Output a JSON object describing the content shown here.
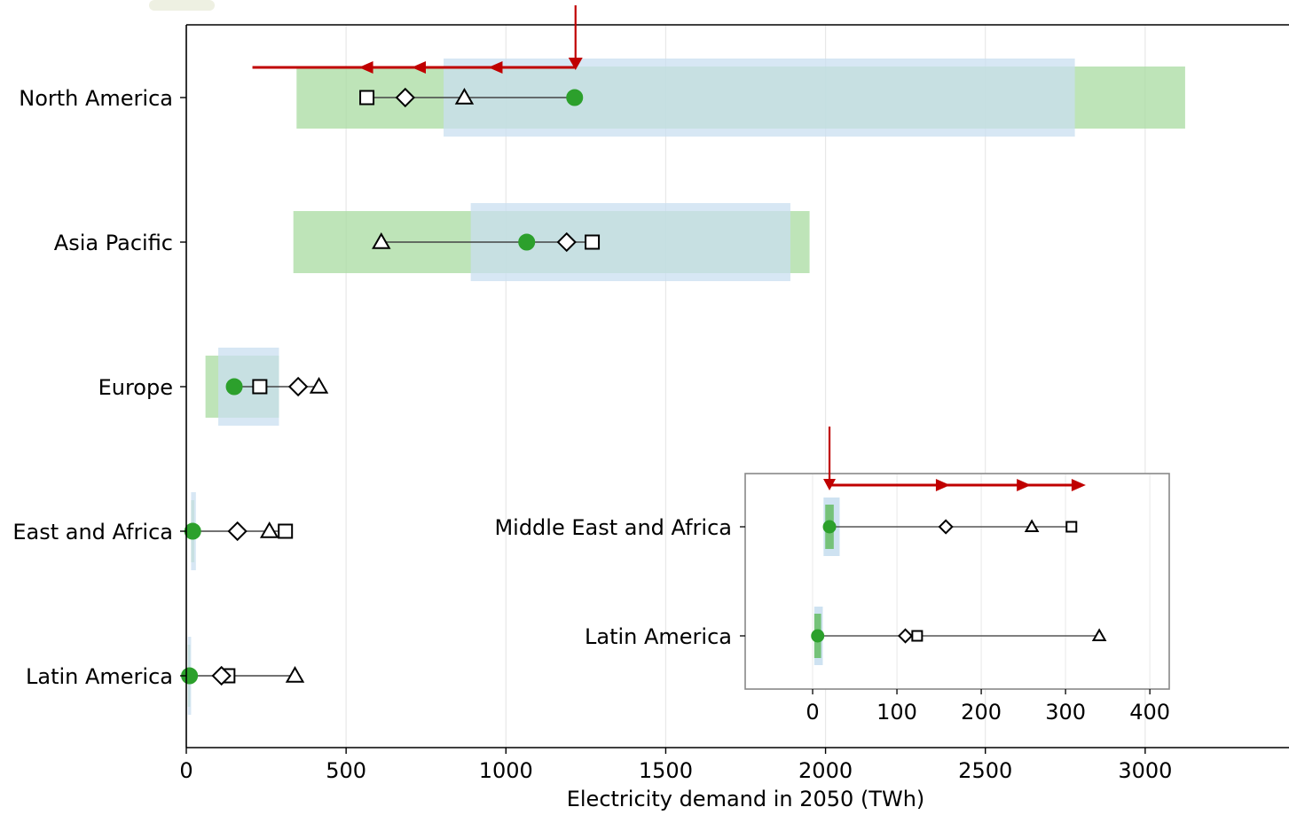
{
  "chart_data": [
    {
      "type": "range-dot",
      "xlabel": "Electricity demand in 2050 (TWh)",
      "ylabel": "",
      "xlim": [
        0,
        3450
      ],
      "xticks": [
        0,
        500,
        1000,
        1500,
        2000,
        2500,
        3000
      ],
      "xtick_labels": [
        "0",
        "500",
        "1000",
        "1500",
        "2000",
        "2500",
        "3000"
      ],
      "grid": "vertical",
      "categories": [
        "North America",
        "Asia Pacific",
        "Europe",
        "East and Africa",
        "Latin America"
      ],
      "ranges": [
        {
          "name": "green-range",
          "color": "#a8dba0",
          "values": [
            [
              345,
              3125
            ],
            [
              335,
              1950
            ],
            [
              60,
              290
            ],
            [
              15,
              25
            ],
            [
              5,
              12
            ]
          ]
        },
        {
          "name": "blue-range",
          "color": "#c9dff0",
          "values": [
            [
              805,
              2780
            ],
            [
              890,
              1890
            ],
            [
              100,
              290
            ],
            [
              15,
              30
            ],
            [
              5,
              15
            ]
          ]
        }
      ],
      "series": [
        {
          "marker": "circle-filled",
          "color": "#2ca02c",
          "values": [
            1215,
            1065,
            150,
            20,
            10
          ]
        },
        {
          "marker": "square",
          "color": "#000000",
          "values": [
            565,
            1270,
            230,
            310,
            130
          ]
        },
        {
          "marker": "diamond",
          "color": "#000000",
          "values": [
            685,
            1190,
            350,
            160,
            110
          ]
        },
        {
          "marker": "triangle",
          "color": "#000000",
          "values": [
            870,
            610,
            415,
            260,
            340
          ]
        }
      ],
      "annotations": [
        {
          "type": "down-arrow",
          "category": "North America",
          "x": 1215,
          "color": "#c00000"
        },
        {
          "type": "left-arrows",
          "category": "North America",
          "from": 1215,
          "heads": [
            945,
            705,
            540
          ],
          "end": 540,
          "color": "#c00000"
        }
      ]
    },
    {
      "type": "range-dot-inset",
      "xlabel": "",
      "xlim": [
        -80,
        423
      ],
      "xticks": [
        0,
        100,
        200,
        300,
        400
      ],
      "xtick_labels": [
        "0",
        "100",
        "200",
        "300",
        "400"
      ],
      "categories": [
        "Middle East and Africa",
        "Latin America"
      ],
      "ranges": [
        {
          "name": "green-range",
          "color": "#6bbf6b",
          "values": [
            [
              16,
              24
            ],
            [
              3,
              9
            ]
          ]
        },
        {
          "name": "blue-range",
          "color": "#c9dff0",
          "values": [
            [
              14,
              31
            ],
            [
              3,
              11
            ]
          ]
        }
      ],
      "series": [
        {
          "marker": "circle-filled",
          "color": "#2ca02c",
          "values": [
            20,
            6
          ]
        },
        {
          "marker": "diamond",
          "color": "#000000",
          "values": [
            158,
            110
          ]
        },
        {
          "marker": "triangle",
          "color": "#000000",
          "values": [
            260,
            340
          ]
        },
        {
          "marker": "square",
          "color": "#000000",
          "values": [
            307,
            124
          ]
        }
      ],
      "annotations": [
        {
          "type": "down-arrow",
          "category": "Middle East and Africa",
          "x": 20,
          "color": "#c00000"
        },
        {
          "type": "right-arrows",
          "category": "Middle East and Africa",
          "from": 20,
          "heads": [
            163,
            259,
            324
          ],
          "color": "#c00000"
        }
      ]
    }
  ]
}
